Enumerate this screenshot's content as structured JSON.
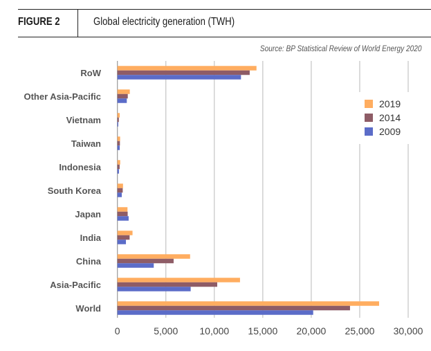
{
  "header": {
    "figure_label": "FIGURE 2",
    "title": "Global electricity generation (TWH)",
    "source": "Source: BP Statistical Review of World Energy 2020"
  },
  "chart_data": {
    "type": "bar",
    "orientation": "horizontal",
    "title": "Global electricity generation (TWH)",
    "xlabel": "",
    "ylabel": "",
    "xlim": [
      0,
      30000
    ],
    "xticks": [
      0,
      5000,
      10000,
      15000,
      20000,
      25000,
      30000
    ],
    "xtick_labels": [
      "0",
      "5,000",
      "10,000",
      "15,000",
      "20,000",
      "25,000",
      "30,000"
    ],
    "grid": true,
    "legend_position": "right",
    "categories": [
      "RoW",
      "Other Asia-Pacific",
      "Vietnam",
      "Taiwan",
      "Indonesia",
      "South Korea",
      "Japan",
      "India",
      "China",
      "Asia-Pacific",
      "World"
    ],
    "series": [
      {
        "name": "2019",
        "color": "#FFAD60",
        "values": [
          14350,
          1280,
          240,
          280,
          290,
          580,
          1040,
          1560,
          7500,
          12650,
          27000
        ]
      },
      {
        "name": "2014",
        "color": "#8E5C66",
        "values": [
          13650,
          1070,
          150,
          260,
          230,
          550,
          1060,
          1260,
          5800,
          10300,
          24000
        ]
      },
      {
        "name": "2009",
        "color": "#5B6CC8",
        "values": [
          12750,
          970,
          90,
          240,
          160,
          450,
          1160,
          880,
          3750,
          7560,
          20200
        ]
      }
    ]
  }
}
